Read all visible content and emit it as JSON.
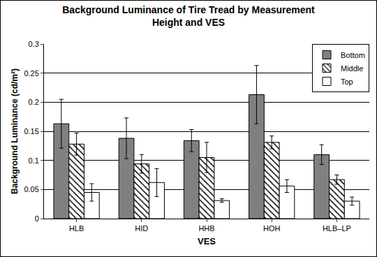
{
  "chart_data": {
    "type": "bar",
    "title": "Background Luminance of Tire Tread by Measurement Height and VES",
    "x_label": "VES",
    "y_label": "Background Luminance (cd/m²)",
    "categories": [
      "HLB",
      "HID",
      "HHB",
      "HOH",
      "HLB–LP"
    ],
    "series": [
      {
        "name": "Bottom",
        "color": "#808080",
        "values": [
          0.163,
          0.138,
          0.134,
          0.213,
          0.11
        ],
        "errors": [
          0.042,
          0.035,
          0.019,
          0.05,
          0.017
        ]
      },
      {
        "name": "Middle",
        "color": "#ffffff",
        "marker": "hatch",
        "values": [
          0.128,
          0.094,
          0.105,
          0.131,
          0.067
        ],
        "errors": [
          0.019,
          0.016,
          0.026,
          0.011,
          0.008
        ]
      },
      {
        "name": "Top",
        "color": "#ffffff",
        "values": [
          0.045,
          0.062,
          0.031,
          0.056,
          0.03
        ],
        "errors": [
          0.015,
          0.024,
          0.003,
          0.011,
          0.007
        ]
      }
    ],
    "ylim": [
      0,
      0.3
    ],
    "yticks": [
      0,
      0.05,
      0.1,
      0.15,
      0.2,
      0.25,
      0.3
    ],
    "grid": true,
    "legend": "top-right"
  }
}
